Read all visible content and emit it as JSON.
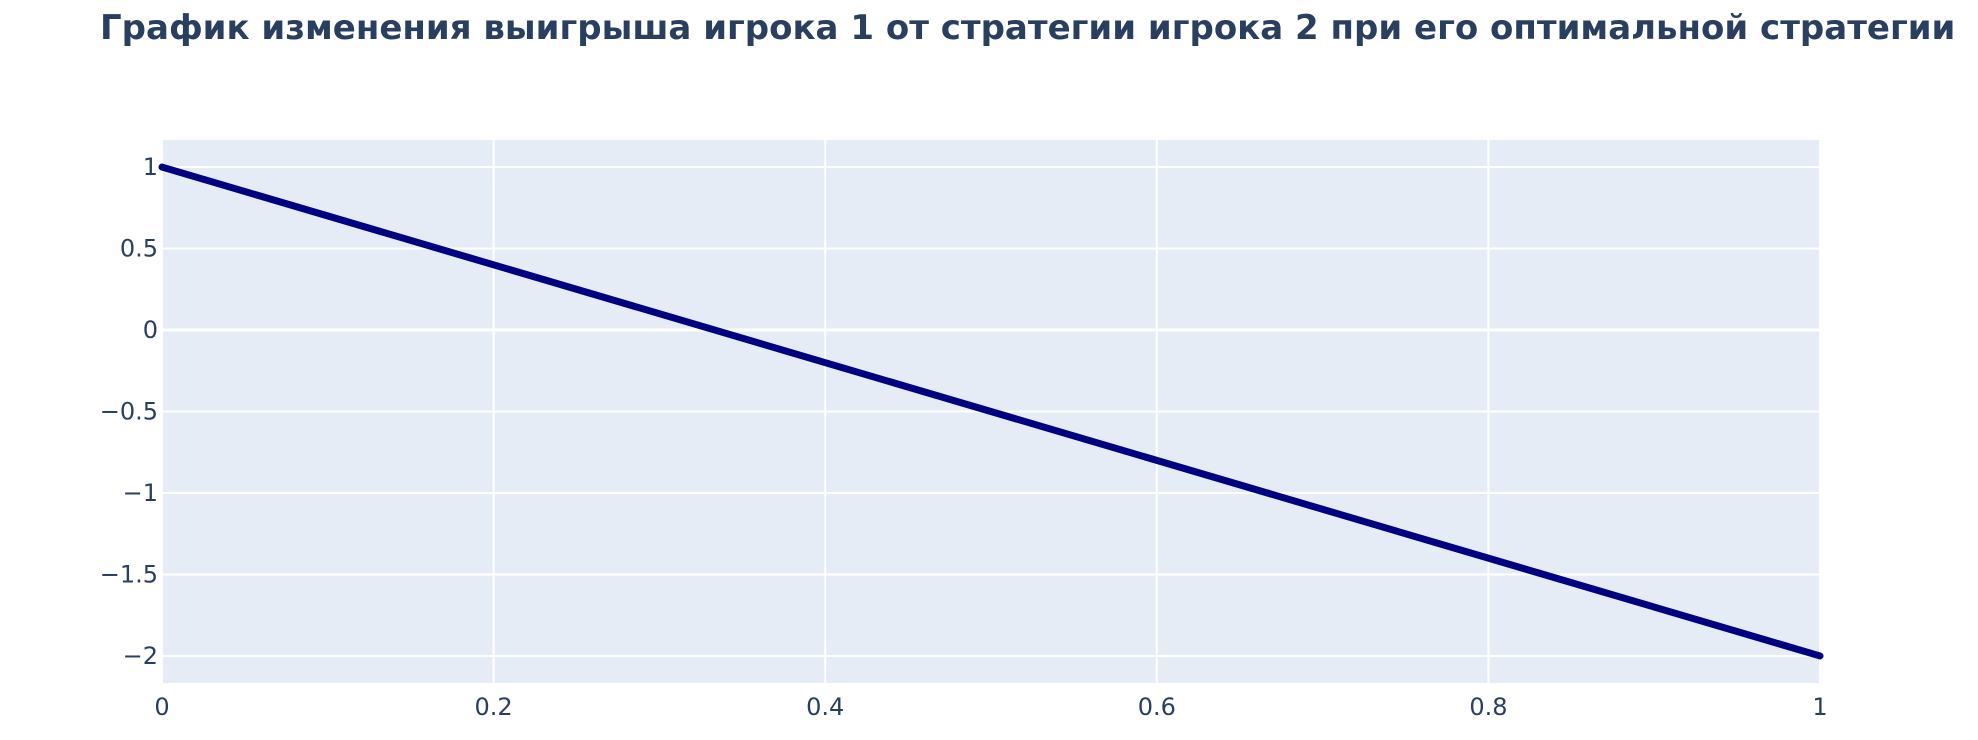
{
  "chart_data": {
    "type": "line",
    "title": "График изменения выигрыша игрока 1 от стратегии игрока 2 при его оптимальной стратегии",
    "xlabel": "",
    "ylabel": "",
    "xlim": [
      0,
      1
    ],
    "ylim": [
      -2.166,
      1.166
    ],
    "x_ticks": [
      0,
      0.2,
      0.4,
      0.6,
      0.8,
      1
    ],
    "x_tick_labels": [
      "0",
      "0.2",
      "0.4",
      "0.6",
      "0.8",
      "1"
    ],
    "y_ticks": [
      1,
      0.5,
      0,
      -0.5,
      -1,
      -1.5,
      -2
    ],
    "y_tick_labels": [
      "1",
      "0.5",
      "0",
      "−0.5",
      "−1",
      "−1.5",
      "−2"
    ],
    "grid": true,
    "series": [
      {
        "x": [
          0,
          1
        ],
        "y": [
          1,
          -2
        ]
      }
    ],
    "colors": {
      "plot_bg": "#e5ecf6",
      "grid": "#ffffff",
      "line": "#000080",
      "text": "#2a3f5f"
    }
  }
}
